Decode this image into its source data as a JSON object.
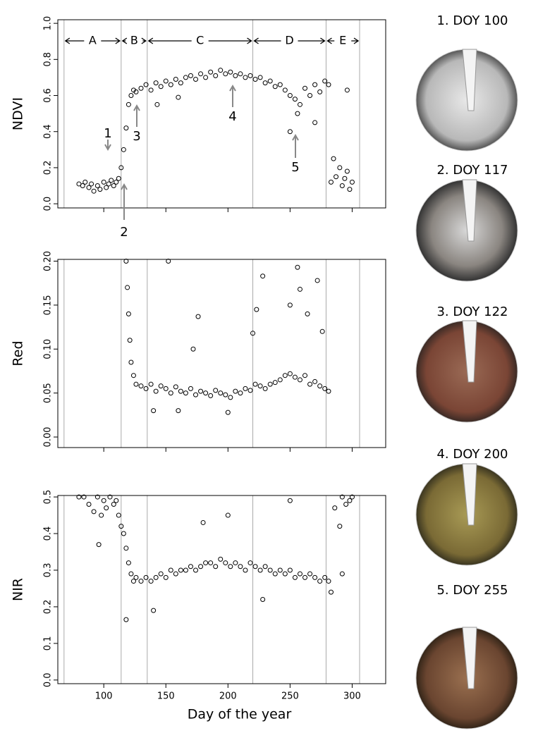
{
  "chart_data": [
    {
      "type": "scatter",
      "ylabel": "NDVI",
      "periods": [
        "A",
        "B",
        "C",
        "D",
        "E"
      ],
      "annotations": [
        "1",
        "2",
        "3",
        "4",
        "5"
      ],
      "vlines": [
        68,
        114,
        135,
        220,
        279,
        306
      ],
      "xlim": [
        63,
        327
      ],
      "xticks": [
        100,
        150,
        200,
        250,
        300
      ],
      "ylim": [
        -0.023,
        1.02
      ],
      "yticks": [
        {
          "value": 0,
          "label": "0.0"
        },
        {
          "value": 0.2,
          "label": "0.2"
        },
        {
          "value": 0.4,
          "label": "0.4"
        },
        {
          "value": 0.6,
          "label": "0.6"
        },
        {
          "value": 0.8,
          "label": "0.8"
        },
        {
          "value": 1,
          "label": "1.0"
        }
      ],
      "color": "#000000",
      "x": [
        80,
        83,
        85,
        88,
        90,
        92,
        95,
        97,
        100,
        102,
        104,
        106,
        108,
        110,
        112,
        114,
        116,
        118,
        120,
        122,
        124,
        126,
        130,
        134,
        138,
        142,
        146,
        150,
        154,
        158,
        162,
        166,
        170,
        174,
        178,
        182,
        186,
        190,
        194,
        198,
        202,
        206,
        210,
        214,
        218,
        222,
        226,
        230,
        234,
        238,
        242,
        246,
        250,
        254,
        256,
        258,
        262,
        266,
        270,
        274,
        278,
        281,
        283,
        285,
        287,
        290,
        292,
        294,
        296,
        298,
        300,
        143,
        160,
        250,
        270,
        296
      ],
      "values": [
        0.11,
        0.1,
        0.12,
        0.09,
        0.11,
        0.07,
        0.1,
        0.08,
        0.12,
        0.09,
        0.11,
        0.13,
        0.1,
        0.12,
        0.14,
        0.2,
        0.3,
        0.42,
        0.55,
        0.6,
        0.63,
        0.62,
        0.64,
        0.66,
        0.63,
        0.67,
        0.65,
        0.68,
        0.66,
        0.69,
        0.67,
        0.7,
        0.71,
        0.69,
        0.72,
        0.7,
        0.73,
        0.71,
        0.74,
        0.72,
        0.73,
        0.71,
        0.72,
        0.7,
        0.71,
        0.69,
        0.7,
        0.67,
        0.68,
        0.65,
        0.66,
        0.63,
        0.6,
        0.58,
        0.5,
        0.55,
        0.64,
        0.6,
        0.66,
        0.62,
        0.68,
        0.66,
        0.12,
        0.25,
        0.15,
        0.2,
        0.1,
        0.14,
        0.18,
        0.08,
        0.12,
        0.55,
        0.59,
        0.4,
        0.45,
        0.63
      ]
    },
    {
      "type": "scatter",
      "ylabel": "Red",
      "vlines": [
        68,
        114,
        135,
        220,
        279,
        306
      ],
      "xlim": [
        63,
        327
      ],
      "xticks": [
        100,
        150,
        200,
        250,
        300
      ],
      "ylim": [
        -0.012,
        0.202
      ],
      "yticks": [
        {
          "value": 0,
          "label": "0.00"
        },
        {
          "value": 0.05,
          "label": "0.05"
        },
        {
          "value": 0.1,
          "label": "0.10"
        },
        {
          "value": 0.15,
          "label": "0.15"
        },
        {
          "value": 0.2,
          "label": "0.20"
        }
      ],
      "color": "#000000",
      "x": [
        118,
        119,
        120,
        121,
        122,
        124,
        126,
        130,
        134,
        138,
        142,
        146,
        150,
        154,
        158,
        162,
        166,
        170,
        174,
        178,
        182,
        186,
        190,
        194,
        198,
        202,
        206,
        210,
        214,
        218,
        222,
        226,
        230,
        234,
        238,
        242,
        246,
        250,
        254,
        258,
        262,
        266,
        270,
        274,
        278,
        281,
        152,
        176,
        172,
        220,
        223,
        228,
        250,
        256,
        258,
        264,
        272,
        276,
        140,
        160,
        200
      ],
      "values": [
        0.2,
        0.17,
        0.14,
        0.11,
        0.085,
        0.07,
        0.06,
        0.058,
        0.055,
        0.06,
        0.052,
        0.058,
        0.055,
        0.05,
        0.057,
        0.052,
        0.05,
        0.055,
        0.048,
        0.052,
        0.05,
        0.047,
        0.053,
        0.05,
        0.048,
        0.045,
        0.052,
        0.05,
        0.055,
        0.053,
        0.06,
        0.058,
        0.055,
        0.06,
        0.062,
        0.065,
        0.07,
        0.072,
        0.068,
        0.065,
        0.07,
        0.06,
        0.063,
        0.058,
        0.055,
        0.052,
        0.2,
        0.137,
        0.1,
        0.118,
        0.145,
        0.183,
        0.15,
        0.193,
        0.168,
        0.14,
        0.178,
        0.12,
        0.03,
        0.03,
        0.028
      ]
    },
    {
      "type": "scatter",
      "ylabel": "NIR",
      "xlabel": "Day of the year",
      "vlines": [
        68,
        114,
        135,
        220,
        279,
        306
      ],
      "xlim": [
        63,
        327
      ],
      "xticks": [
        100,
        150,
        200,
        250,
        300
      ],
      "ylim": [
        -0.01,
        0.504
      ],
      "yticks": [
        {
          "value": 0,
          "label": "0.0"
        },
        {
          "value": 0.1,
          "label": "0.1"
        },
        {
          "value": 0.2,
          "label": "0.2"
        },
        {
          "value": 0.3,
          "label": "0.3"
        },
        {
          "value": 0.4,
          "label": "0.4"
        },
        {
          "value": 0.5,
          "label": "0.5"
        }
      ],
      "color": "#000000",
      "x": [
        80,
        84,
        88,
        92,
        95,
        98,
        100,
        102,
        105,
        108,
        110,
        112,
        114,
        116,
        118,
        120,
        122,
        124,
        126,
        130,
        134,
        138,
        142,
        146,
        150,
        154,
        158,
        162,
        166,
        170,
        174,
        178,
        182,
        186,
        190,
        194,
        198,
        202,
        206,
        210,
        214,
        218,
        222,
        226,
        230,
        234,
        238,
        242,
        246,
        250,
        254,
        258,
        262,
        266,
        270,
        274,
        278,
        281,
        283,
        286,
        290,
        292,
        295,
        298,
        300,
        118,
        96,
        140,
        200,
        250,
        180,
        228,
        292
      ],
      "values": [
        0.5,
        0.5,
        0.48,
        0.46,
        0.5,
        0.45,
        0.49,
        0.47,
        0.5,
        0.48,
        0.49,
        0.45,
        0.42,
        0.4,
        0.36,
        0.32,
        0.29,
        0.27,
        0.28,
        0.27,
        0.28,
        0.27,
        0.28,
        0.29,
        0.28,
        0.3,
        0.29,
        0.3,
        0.3,
        0.31,
        0.3,
        0.31,
        0.32,
        0.32,
        0.31,
        0.33,
        0.32,
        0.31,
        0.32,
        0.31,
        0.3,
        0.32,
        0.31,
        0.3,
        0.31,
        0.3,
        0.29,
        0.3,
        0.29,
        0.3,
        0.28,
        0.29,
        0.28,
        0.29,
        0.28,
        0.27,
        0.28,
        0.27,
        0.24,
        0.47,
        0.42,
        0.5,
        0.48,
        0.49,
        0.5,
        0.165,
        0.37,
        0.19,
        0.45,
        0.49,
        0.43,
        0.22,
        0.29
      ]
    }
  ],
  "photos": [
    {
      "caption": "1. DOY 100"
    },
    {
      "caption": "2. DOY 117"
    },
    {
      "caption": "3. DOY 122"
    },
    {
      "caption": "4. DOY 200"
    },
    {
      "caption": "5. DOY 255"
    }
  ]
}
